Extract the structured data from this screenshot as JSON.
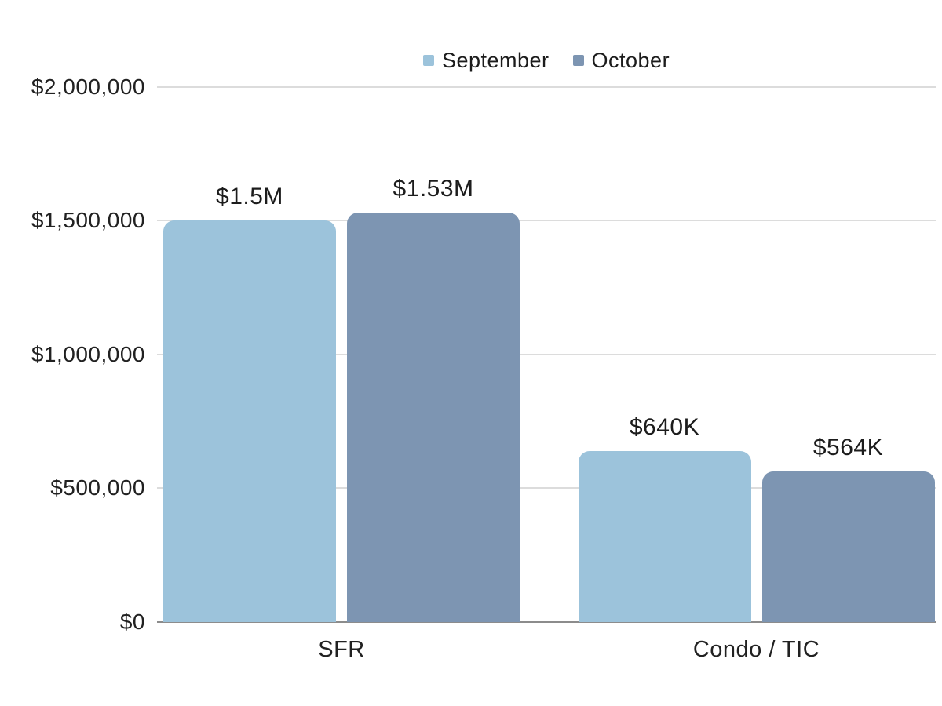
{
  "chart_data": {
    "type": "bar",
    "title": "",
    "categories": [
      "SFR",
      "Condo / TIC"
    ],
    "series": [
      {
        "name": "September",
        "color": "#9cc3db",
        "values": [
          1500000,
          640000
        ],
        "labels": [
          "$1.5M",
          "$640K"
        ]
      },
      {
        "name": "October",
        "color": "#7d95b2",
        "values": [
          1530000,
          564000
        ],
        "labels": [
          "$1.53M",
          "$564K"
        ]
      }
    ],
    "y_ticks": [
      {
        "value": 2000000,
        "label": "$2,000,000"
      },
      {
        "value": 1500000,
        "label": "$1,500,000"
      },
      {
        "value": 1000000,
        "label": "$1,000,000"
      },
      {
        "value": 500000,
        "label": "$500,000"
      },
      {
        "value": 0,
        "label": "$0"
      }
    ],
    "ylim": [
      0,
      2000000
    ],
    "xlabel": "",
    "ylabel": "",
    "grid": "horizontal",
    "legend_position": "top-center",
    "colors": {
      "gridline": "#dcdcdc",
      "baseline": "#8c8c8c",
      "text": "#212121",
      "background": "#ffffff"
    }
  }
}
